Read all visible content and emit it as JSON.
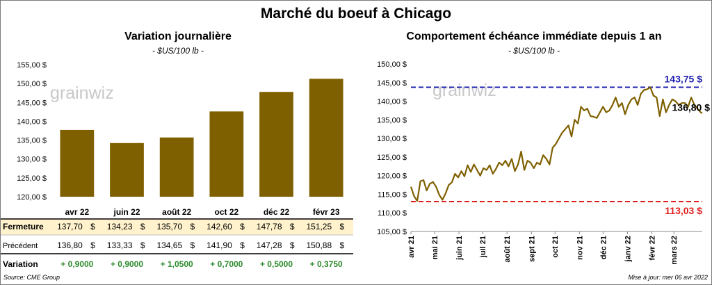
{
  "main_title": "Marché du boeuf à Chicago",
  "colors": {
    "bar": "#7f6000",
    "line": "#7f6000",
    "high_line": "#1f1fb0",
    "low_line": "#e02020",
    "high_label": "#1f1fb0",
    "low_label": "#e02020",
    "fermeture_row_bg": "#fff2cc",
    "positive_variation": "#2e8b2e"
  },
  "watermark": {
    "text": "grainwiz"
  },
  "chart_data": [
    {
      "type": "bar",
      "title": "Variation journalière",
      "subtitle": "- $US/100 lb -",
      "categories": [
        "avr 22",
        "juin 22",
        "août 22",
        "oct 22",
        "déc 22",
        "févr 23"
      ],
      "values": [
        137.7,
        134.23,
        135.7,
        142.6,
        147.78,
        151.25
      ],
      "ylim": [
        120,
        155
      ],
      "yticks": [
        120,
        125,
        130,
        135,
        140,
        145,
        150,
        155
      ],
      "ytick_labels": [
        "120,00 $",
        "125,00 $",
        "130,00 $",
        "135,00 $",
        "140,00 $",
        "145,00 $",
        "150,00 $",
        "155,00 $"
      ],
      "grid": false,
      "table": {
        "rows": [
          {
            "label": "Fermeture",
            "cells": [
              {
                "value": "137,70",
                "unit": "$"
              },
              {
                "value": "134,23",
                "unit": "$"
              },
              {
                "value": "135,70",
                "unit": "$"
              },
              {
                "value": "142,60",
                "unit": "$"
              },
              {
                "value": "147,78",
                "unit": "$"
              },
              {
                "value": "151,25",
                "unit": "$"
              }
            ]
          },
          {
            "label": "Précédent",
            "cells": [
              {
                "value": "136,80",
                "unit": "$"
              },
              {
                "value": "133,33",
                "unit": "$"
              },
              {
                "value": "134,65",
                "unit": "$"
              },
              {
                "value": "141,90",
                "unit": "$"
              },
              {
                "value": "147,28",
                "unit": "$"
              },
              {
                "value": "150,88",
                "unit": "$"
              }
            ]
          },
          {
            "label": "Variation",
            "cells": [
              {
                "value": "+ 0,9000"
              },
              {
                "value": "+ 0,9000"
              },
              {
                "value": "+ 1,0500"
              },
              {
                "value": "+ 0,7000"
              },
              {
                "value": "+ 0,5000"
              },
              {
                "value": "+ 0,3750"
              }
            ]
          }
        ]
      }
    },
    {
      "type": "line",
      "title": "Comportement  échéance immédiate depuis 1 an",
      "subtitle": "- $US/100 lb -",
      "ylim": [
        105,
        150
      ],
      "yticks": [
        105,
        110,
        115,
        120,
        125,
        130,
        135,
        140,
        145,
        150
      ],
      "ytick_labels": [
        "105,00 $",
        "110,00 $",
        "115,00 $",
        "120,00 $",
        "125,00 $",
        "130,00 $",
        "135,00 $",
        "140,00 $",
        "145,00 $",
        "150,00 $"
      ],
      "xlim": [
        "2021-04-01",
        "2022-04-06"
      ],
      "xticks": [
        "2021-04-01",
        "2021-05-01",
        "2021-06-01",
        "2021-07-01",
        "2021-08-01",
        "2021-09-01",
        "2021-10-01",
        "2021-11-01",
        "2021-12-01",
        "2022-01-01",
        "2022-02-01",
        "2022-03-01"
      ],
      "xtick_labels": [
        "avr 21",
        "mai 21",
        "juin 21",
        "juil 21",
        "août 21",
        "sept 21",
        "oct 21",
        "nov 21",
        "déc 21",
        "janv 22",
        "févr 22",
        "mars 22"
      ],
      "grid": false,
      "high": {
        "value": 143.75,
        "label": "143,75 $"
      },
      "low": {
        "value": 113.03,
        "label": "113,03 $"
      },
      "last": {
        "value": 136.8,
        "label": "136,80 $"
      },
      "series": [
        {
          "x": [
            "2021-04-01",
            "2021-04-05",
            "2021-04-09",
            "2021-04-13",
            "2021-04-17",
            "2021-04-21",
            "2021-04-25",
            "2021-04-29",
            "2021-05-03",
            "2021-05-07",
            "2021-05-11",
            "2021-05-15",
            "2021-05-19",
            "2021-05-23",
            "2021-05-27",
            "2021-05-31",
            "2021-06-04",
            "2021-06-08",
            "2021-06-12",
            "2021-06-16",
            "2021-06-20",
            "2021-06-24",
            "2021-06-28",
            "2021-07-02",
            "2021-07-06",
            "2021-07-10",
            "2021-07-14",
            "2021-07-18",
            "2021-07-22",
            "2021-07-26",
            "2021-07-30",
            "2021-08-03",
            "2021-08-07",
            "2021-08-11",
            "2021-08-15",
            "2021-08-19",
            "2021-08-23",
            "2021-08-27",
            "2021-08-31",
            "2021-09-04",
            "2021-09-08",
            "2021-09-12",
            "2021-09-16",
            "2021-09-20",
            "2021-09-24",
            "2021-09-28",
            "2021-10-02",
            "2021-10-06",
            "2021-10-10",
            "2021-10-14",
            "2021-10-18",
            "2021-10-22",
            "2021-10-26",
            "2021-10-30",
            "2021-11-03",
            "2021-11-07",
            "2021-11-11",
            "2021-11-15",
            "2021-11-19",
            "2021-11-23",
            "2021-11-27",
            "2021-12-01",
            "2021-12-05",
            "2021-12-09",
            "2021-12-13",
            "2021-12-17",
            "2021-12-21",
            "2021-12-25",
            "2021-12-29",
            "2022-01-02",
            "2022-01-06",
            "2022-01-10",
            "2022-01-14",
            "2022-01-18",
            "2022-01-22",
            "2022-01-26",
            "2022-01-30",
            "2022-02-03",
            "2022-02-07",
            "2022-02-11",
            "2022-02-15",
            "2022-02-19",
            "2022-02-23",
            "2022-02-27",
            "2022-03-03",
            "2022-03-07",
            "2022-03-11",
            "2022-03-15",
            "2022-03-19",
            "2022-03-23",
            "2022-03-27",
            "2022-03-31",
            "2022-04-04",
            "2022-04-06"
          ],
          "y": [
            117.0,
            114.5,
            113.2,
            118.5,
            118.8,
            116.0,
            117.8,
            118.3,
            117.0,
            114.8,
            113.5,
            115.2,
            117.5,
            118.2,
            120.5,
            119.5,
            121.2,
            119.8,
            122.8,
            121.0,
            123.0,
            121.5,
            120.0,
            122.0,
            121.5,
            122.8,
            120.5,
            121.8,
            123.5,
            122.8,
            124.0,
            122.5,
            124.5,
            121.2,
            123.0,
            126.5,
            121.5,
            124.0,
            123.5,
            122.0,
            123.5,
            123.0,
            125.5,
            124.5,
            123.0,
            127.5,
            128.5,
            130.0,
            131.5,
            132.5,
            133.5,
            130.5,
            135.0,
            134.0,
            138.5,
            137.5,
            138.0,
            136.0,
            135.8,
            135.5,
            137.0,
            138.5,
            137.0,
            137.5,
            139.0,
            141.0,
            138.5,
            139.5,
            136.5,
            139.0,
            140.5,
            141.0,
            139.0,
            142.0,
            143.0,
            143.2,
            143.75,
            141.5,
            141.0,
            136.0,
            140.5,
            137.0,
            139.0,
            140.5,
            140.0,
            139.0,
            139.5,
            139.5,
            138.5,
            141.0,
            139.0,
            138.0,
            137.0,
            136.8
          ]
        }
      ]
    }
  ],
  "footer": {
    "source": "Source: CME Group",
    "updated": "Mise à jour: mer 06 avr 2022"
  }
}
